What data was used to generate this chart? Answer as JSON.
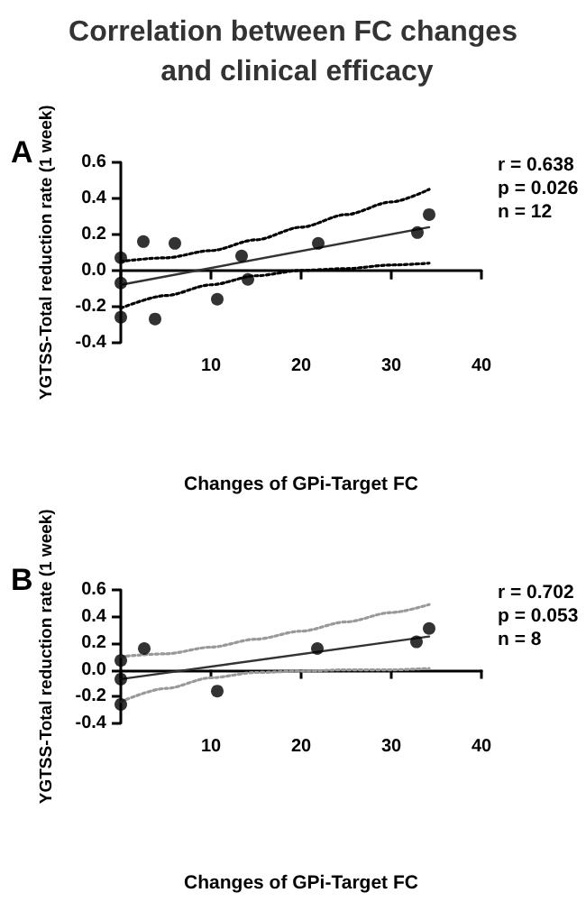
{
  "chart_data": [
    {
      "type": "scatter",
      "title": "Correlation between FC changes and clinical efficacy",
      "xlabel": "Changes of GPi-Target FC",
      "ylabel": "YGTSS-Total reduction rate (1 week)",
      "annotations": [
        "A",
        "r = 0.638",
        "p = 0.026",
        "n = 12"
      ],
      "xlim": [
        0,
        40
      ],
      "xticks": [
        {
          "value": 0,
          "label": null
        },
        10,
        20,
        30,
        40
      ],
      "ylim": [
        -0.4,
        0.6
      ],
      "yticks": [
        {
          "value": -0.4,
          "label": "-0.4"
        },
        {
          "value": -0.2,
          "label": "-0.2"
        },
        {
          "value": 0,
          "label": "0.0"
        },
        {
          "value": 0.2,
          "label": "0.2"
        },
        {
          "value": 0.4,
          "label": "0.4"
        },
        {
          "value": 0.6,
          "label": "0.6"
        }
      ],
      "series": [
        {
          "marker": "circle",
          "color": "#000000",
          "x": [
            0,
            0,
            0,
            2.5,
            6,
            3.8,
            10.7,
            13.4,
            14.1,
            21.9,
            32.9,
            34.2
          ],
          "values": [
            0.07,
            -0.07,
            -0.26,
            0.16,
            0.15,
            -0.27,
            -0.16,
            0.08,
            -0.05,
            0.15,
            0.21,
            0.31
          ]
        },
        {
          "type": "line",
          "marker": "none",
          "line_style": "solid",
          "color": "#333333",
          "x": [
            0,
            34.2
          ],
          "values": [
            -0.08,
            0.24
          ]
        },
        {
          "type": "line",
          "marker": "none",
          "line_style": "dotted",
          "color": "#000000",
          "x": [
            0,
            5,
            10,
            15,
            20,
            25,
            30,
            34.2
          ],
          "values": [
            0.05,
            0.07,
            0.11,
            0.17,
            0.24,
            0.31,
            0.38,
            0.45
          ]
        },
        {
          "type": "line",
          "marker": "none",
          "line_style": "dotted",
          "color": "#000000",
          "x": [
            0,
            5,
            10,
            15,
            20,
            25,
            30,
            34.2
          ],
          "values": [
            -0.21,
            -0.14,
            -0.08,
            -0.03,
            0.0,
            0.01,
            0.03,
            0.04
          ]
        }
      ]
    },
    {
      "type": "scatter",
      "xlabel": "Changes of GPi-Target FC",
      "ylabel": "YGTSS-Total reduction rate (1 week)",
      "annotations": [
        "B",
        "r = 0.702",
        "p = 0.053",
        "n = 8"
      ],
      "xlim": [
        0,
        40
      ],
      "xticks": [
        {
          "value": 0,
          "label": null
        },
        10,
        20,
        30,
        40
      ],
      "ylim": [
        -0.4,
        0.6
      ],
      "yticks": [
        {
          "value": -0.4,
          "label": "-0.4"
        },
        {
          "value": -0.2,
          "label": "-0.2"
        },
        {
          "value": 0,
          "label": "0.0"
        },
        {
          "value": 0.2,
          "label": "0.2"
        },
        {
          "value": 0.4,
          "label": "0.4"
        },
        {
          "value": 0.6,
          "label": "0.6"
        }
      ],
      "series": [
        {
          "marker": "circle",
          "color": "#000000",
          "x": [
            0,
            0,
            0,
            2.6,
            10.7,
            21.8,
            32.8,
            34.2
          ],
          "values": [
            0.07,
            -0.07,
            -0.26,
            0.16,
            -0.16,
            0.16,
            0.21,
            0.31
          ]
        },
        {
          "type": "line",
          "marker": "none",
          "line_style": "solid",
          "color": "#333333",
          "x": [
            0,
            34.2
          ],
          "values": [
            -0.07,
            0.25
          ]
        },
        {
          "type": "line",
          "marker": "none",
          "line_style": "dotted",
          "color": "#999999",
          "x": [
            0,
            5,
            10,
            15,
            20,
            25,
            30,
            34.2
          ],
          "values": [
            0.1,
            0.12,
            0.17,
            0.23,
            0.29,
            0.36,
            0.43,
            0.49
          ]
        },
        {
          "type": "line",
          "marker": "none",
          "line_style": "dotted",
          "color": "#999999",
          "x": [
            0,
            5,
            10,
            15,
            20,
            25,
            30,
            34.2
          ],
          "values": [
            -0.24,
            -0.14,
            -0.06,
            -0.02,
            -0.01,
            0.0,
            0.0,
            0.01
          ]
        }
      ]
    }
  ]
}
